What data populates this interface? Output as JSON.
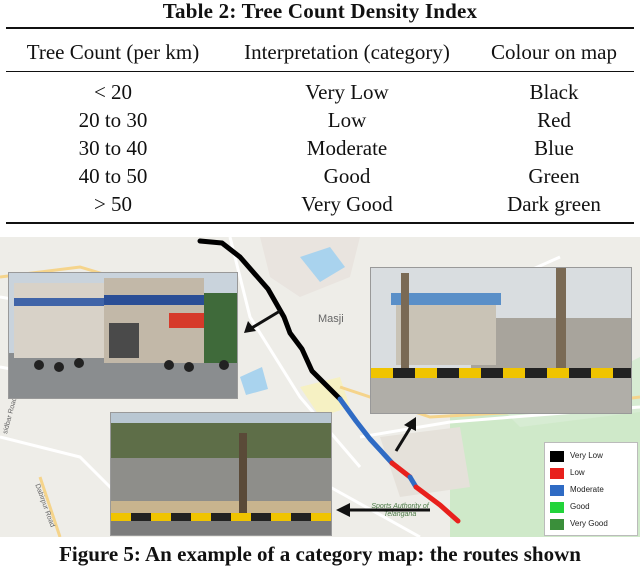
{
  "table": {
    "title": "Table 2: Tree Count Density Index",
    "headers": [
      "Tree Count (per km)",
      "Interpretation (category)",
      "Colour on map"
    ],
    "rows": [
      [
        "< 20",
        "Very Low",
        "Black"
      ],
      [
        "20 to 30",
        "Low",
        "Red"
      ],
      [
        "30 to 40",
        "Moderate",
        "Blue"
      ],
      [
        "40 to 50",
        "Good",
        "Green"
      ],
      [
        "> 50",
        "Very Good",
        "Dark green"
      ]
    ]
  },
  "map": {
    "labels": {
      "masjid": "Masji",
      "sports_authority": "Sports Authority of Telangana",
      "road_left": "Dabirpur Road",
      "road_bottom": "sidbar Road"
    },
    "legend": [
      {
        "label": "Very Low",
        "color": "#000000"
      },
      {
        "label": "Low",
        "color": "#e8201c"
      },
      {
        "label": "Moderate",
        "color": "#2f6bc4"
      },
      {
        "label": "Good",
        "color": "#22d43a"
      },
      {
        "label": "Very Good",
        "color": "#3a8f3a"
      }
    ]
  },
  "caption": "Figure 5: An example of a category map: the routes shown"
}
